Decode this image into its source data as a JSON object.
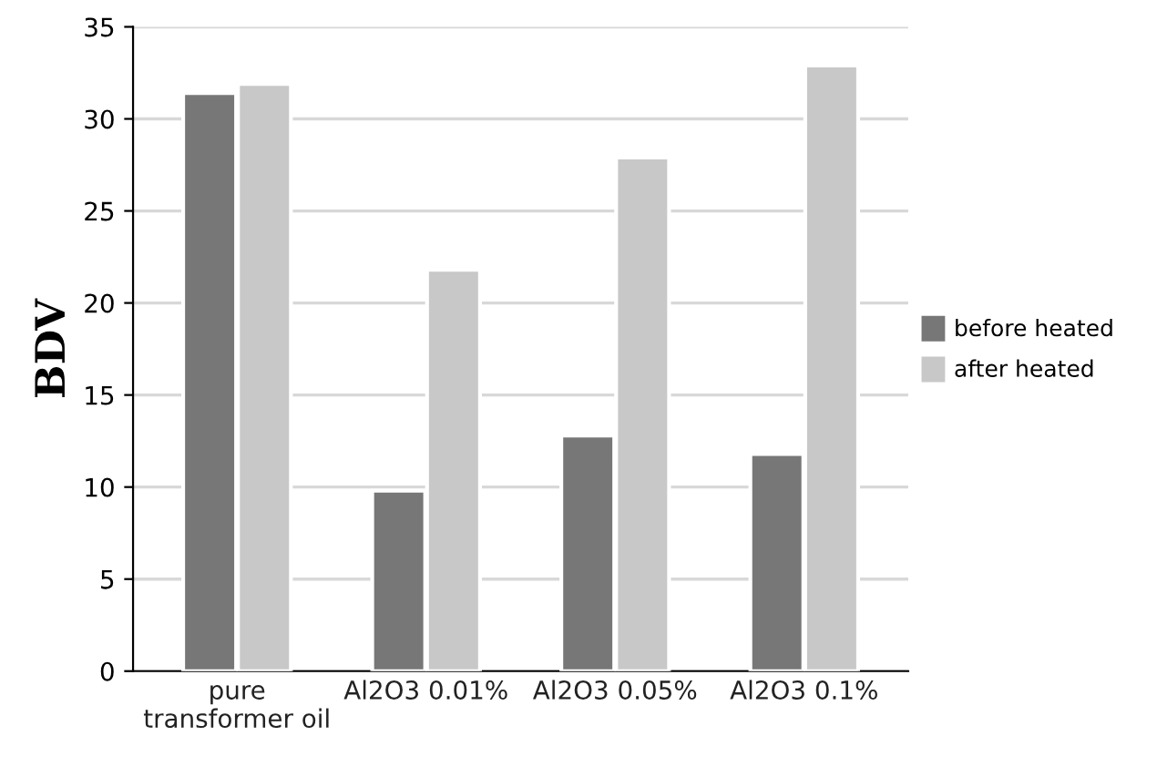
{
  "chart_data": {
    "type": "bar",
    "ylabel": "BDV",
    "categories": [
      "pure\ntransformer oil",
      "Al2O3 0.01%",
      "Al2O3 0.05%",
      "Al2O3 0.1%"
    ],
    "series": [
      {
        "name": "before heated",
        "color": "#777777",
        "values": [
          31.4,
          9.8,
          12.8,
          11.8
        ]
      },
      {
        "name": "after heated",
        "color": "#c8c8c8",
        "values": [
          31.9,
          21.8,
          27.9,
          32.9
        ]
      }
    ],
    "ylim": [
      0,
      35
    ],
    "yticks": [
      0,
      5,
      10,
      15,
      20,
      25,
      30,
      35
    ],
    "grid": "y",
    "legend": "right"
  }
}
